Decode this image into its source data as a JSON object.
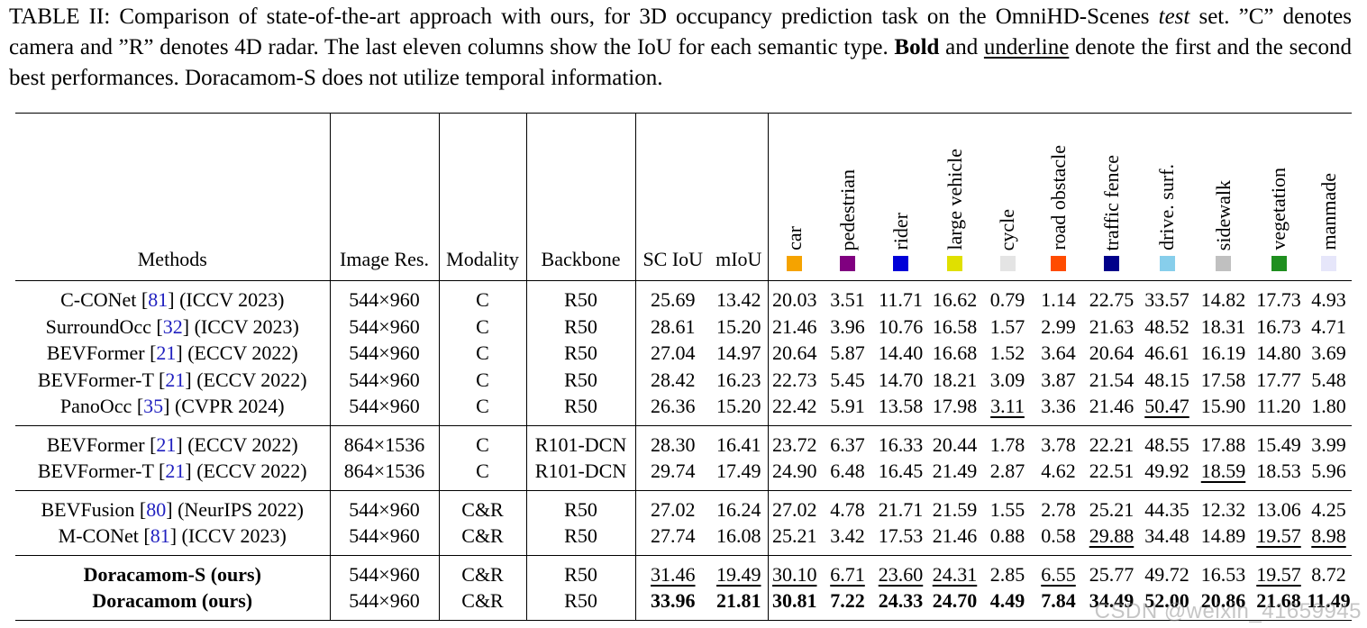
{
  "caption": {
    "part1": "TABLE II: Comparison of state-of-the-art approach with ours, for 3D occupancy prediction task on the OmniHD-Scenes ",
    "italic": "test",
    "part2": " set. ”C” denotes camera and ”R” denotes 4D radar. The last eleven columns show the IoU for each semantic type. ",
    "bold": "Bold",
    "part3": " and ",
    "underline": "underline",
    "part4": " denote the first and the second best performances. Doracamom-S does not utilize temporal information."
  },
  "headers": {
    "methods": "Methods",
    "image_res": "Image Res.",
    "modality": "Modality",
    "backbone": "Backbone",
    "sc_iou": "SC IoU",
    "miou": "mIoU"
  },
  "classes": [
    {
      "name": "car",
      "color": "#f5a300"
    },
    {
      "name": "pedestrian",
      "color": "#800080"
    },
    {
      "name": "rider",
      "color": "#0000d8"
    },
    {
      "name": "large vehicle",
      "color": "#e0e000"
    },
    {
      "name": "cycle",
      "color": "#e4e4e4"
    },
    {
      "name": "road obstacle",
      "color": "#ff4c00"
    },
    {
      "name": "traffic fence",
      "color": "#00008a"
    },
    {
      "name": "drive. surf.",
      "color": "#87ceeb"
    },
    {
      "name": "sidewalk",
      "color": "#c0c0c0"
    },
    {
      "name": "vegetation",
      "color": "#1f8f1f"
    },
    {
      "name": "manmade",
      "color": "#e6e6fa"
    }
  ],
  "groups": [
    [
      {
        "name": "C-CONet",
        "ref": "81",
        "venue": "(ICCV 2023)",
        "res": "544×960",
        "modality": "C",
        "backbone": "R50",
        "sc_iou": "25.69",
        "miou": "13.42",
        "ious": [
          "20.03",
          "3.51",
          "11.71",
          "16.62",
          "0.79",
          "1.14",
          "22.75",
          "33.57",
          "14.82",
          "17.73",
          "4.93"
        ]
      },
      {
        "name": "SurroundOcc",
        "ref": "32",
        "venue": "(ICCV 2023)",
        "res": "544×960",
        "modality": "C",
        "backbone": "R50",
        "sc_iou": "28.61",
        "miou": "15.20",
        "ious": [
          "21.46",
          "3.96",
          "10.76",
          "16.58",
          "1.57",
          "2.99",
          "21.63",
          "48.52",
          "18.31",
          "16.73",
          "4.71"
        ]
      },
      {
        "name": "BEVFormer",
        "ref": "21",
        "venue": "(ECCV 2022)",
        "res": "544×960",
        "modality": "C",
        "backbone": "R50",
        "sc_iou": "27.04",
        "miou": "14.97",
        "ious": [
          "20.64",
          "5.87",
          "14.40",
          "16.68",
          "1.52",
          "3.64",
          "20.64",
          "46.61",
          "16.19",
          "14.80",
          "3.69"
        ]
      },
      {
        "name": "BEVFormer-T",
        "ref": "21",
        "venue": "(ECCV 2022)",
        "res": "544×960",
        "modality": "C",
        "backbone": "R50",
        "sc_iou": "28.42",
        "miou": "16.23",
        "ious": [
          "22.73",
          "5.45",
          "14.70",
          "18.21",
          "3.09",
          "3.87",
          "21.54",
          "48.15",
          "17.58",
          "17.77",
          "5.48"
        ]
      },
      {
        "name": "PanoOcc",
        "ref": "35",
        "venue": "(CVPR 2024)",
        "res": "544×960",
        "modality": "C",
        "backbone": "R50",
        "sc_iou": "26.36",
        "miou": "15.20",
        "ious": [
          "22.42",
          "5.91",
          "13.58",
          "17.98",
          "3.11",
          "3.36",
          "21.46",
          "50.47",
          "15.90",
          "11.20",
          "1.80"
        ],
        "ul": [
          4,
          7
        ]
      }
    ],
    [
      {
        "name": "BEVFormer",
        "ref": "21",
        "venue": "(ECCV 2022)",
        "res": "864×1536",
        "modality": "C",
        "backbone": "R101-DCN",
        "sc_iou": "28.30",
        "miou": "16.41",
        "ious": [
          "23.72",
          "6.37",
          "16.33",
          "20.44",
          "1.78",
          "3.78",
          "22.21",
          "48.55",
          "17.88",
          "15.49",
          "3.99"
        ]
      },
      {
        "name": "BEVFormer-T",
        "ref": "21",
        "venue": "(ECCV 2022)",
        "res": "864×1536",
        "modality": "C",
        "backbone": "R101-DCN",
        "sc_iou": "29.74",
        "miou": "17.49",
        "ious": [
          "24.90",
          "6.48",
          "16.45",
          "21.49",
          "2.87",
          "4.62",
          "22.51",
          "49.92",
          "18.59",
          "18.53",
          "5.96"
        ],
        "ul": [
          8
        ]
      }
    ],
    [
      {
        "name": "BEVFusion",
        "ref": "80",
        "venue": "(NeurIPS 2022)",
        "res": "544×960",
        "modality": "C&R",
        "backbone": "R50",
        "sc_iou": "27.02",
        "miou": "16.24",
        "ious": [
          "27.02",
          "4.78",
          "21.71",
          "21.59",
          "1.55",
          "2.78",
          "25.21",
          "44.35",
          "12.32",
          "13.06",
          "4.25"
        ]
      },
      {
        "name": "M-CONet",
        "ref": "81",
        "venue": "(ICCV 2023)",
        "res": "544×960",
        "modality": "C&R",
        "backbone": "R50",
        "sc_iou": "27.74",
        "miou": "16.08",
        "ious": [
          "25.21",
          "3.42",
          "17.53",
          "21.46",
          "0.88",
          "0.58",
          "29.88",
          "34.48",
          "14.89",
          "19.57",
          "8.98"
        ],
        "ul": [
          6,
          9,
          10
        ]
      }
    ],
    [
      {
        "name": "Doracamom-S (ours)",
        "ref": "",
        "venue": "",
        "bold_name": true,
        "res": "544×960",
        "modality": "C&R",
        "backbone": "R50",
        "sc_iou": "31.46",
        "miou": "19.49",
        "ious": [
          "30.10",
          "6.71",
          "23.60",
          "24.31",
          "2.85",
          "6.55",
          "25.77",
          "49.72",
          "16.53",
          "19.57",
          "8.72"
        ],
        "ul_sc": true,
        "ul_miou": true,
        "ul": [
          0,
          1,
          2,
          3,
          5,
          9
        ]
      },
      {
        "name": "Doracamom (ours)",
        "ref": "",
        "venue": "",
        "bold_name": true,
        "res": "544×960",
        "modality": "C&R",
        "backbone": "R50",
        "sc_iou": "33.96",
        "miou": "21.81",
        "ious": [
          "30.81",
          "7.22",
          "24.33",
          "24.70",
          "4.49",
          "7.84",
          "34.49",
          "52.00",
          "20.86",
          "21.68",
          "11.49"
        ],
        "bold_all": true
      }
    ]
  ],
  "watermark": "CSDN @weixin_41659945"
}
